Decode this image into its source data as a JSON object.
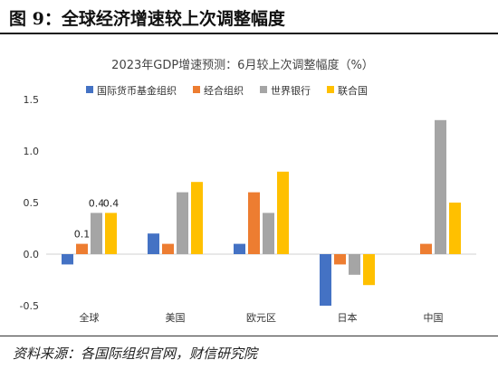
{
  "figure": {
    "title": "图 9：全球经济增速较上次调整幅度",
    "source": "资料来源：各国际组织官网，财信研究院"
  },
  "colors": {
    "imf": "#4472C4",
    "oecd": "#ED7D31",
    "worldbank": "#A5A5A5",
    "un": "#FFC000"
  },
  "chart_data": {
    "type": "bar",
    "title": "2023年GDP增速预测：6月较上次调整幅度（%）",
    "categories": [
      "全球",
      "美国",
      "欧元区",
      "日本",
      "中国"
    ],
    "series": [
      {
        "name": "国际货币基金组织",
        "values": [
          -0.1,
          0.2,
          0.1,
          -0.5,
          null
        ]
      },
      {
        "name": "经合组织",
        "values": [
          0.1,
          0.1,
          0.6,
          -0.1,
          0.1
        ]
      },
      {
        "name": "世界银行",
        "values": [
          0.4,
          0.6,
          0.4,
          -0.2,
          1.3
        ]
      },
      {
        "name": "联合国",
        "values": [
          0.4,
          0.7,
          0.8,
          -0.3,
          0.5
        ]
      }
    ],
    "y_ticks": [
      "-0.5",
      "0.0",
      "0.5",
      "1.0",
      "1.5"
    ],
    "ylim": [
      -0.5,
      1.5
    ],
    "data_labels": [
      {
        "category": 0,
        "series": 1,
        "text": "0.1"
      },
      {
        "category": 0,
        "series": 2,
        "text": "0.4"
      },
      {
        "category": 0,
        "series": 3,
        "text": "0.4"
      }
    ],
    "legend_position": "top",
    "grid": false
  }
}
